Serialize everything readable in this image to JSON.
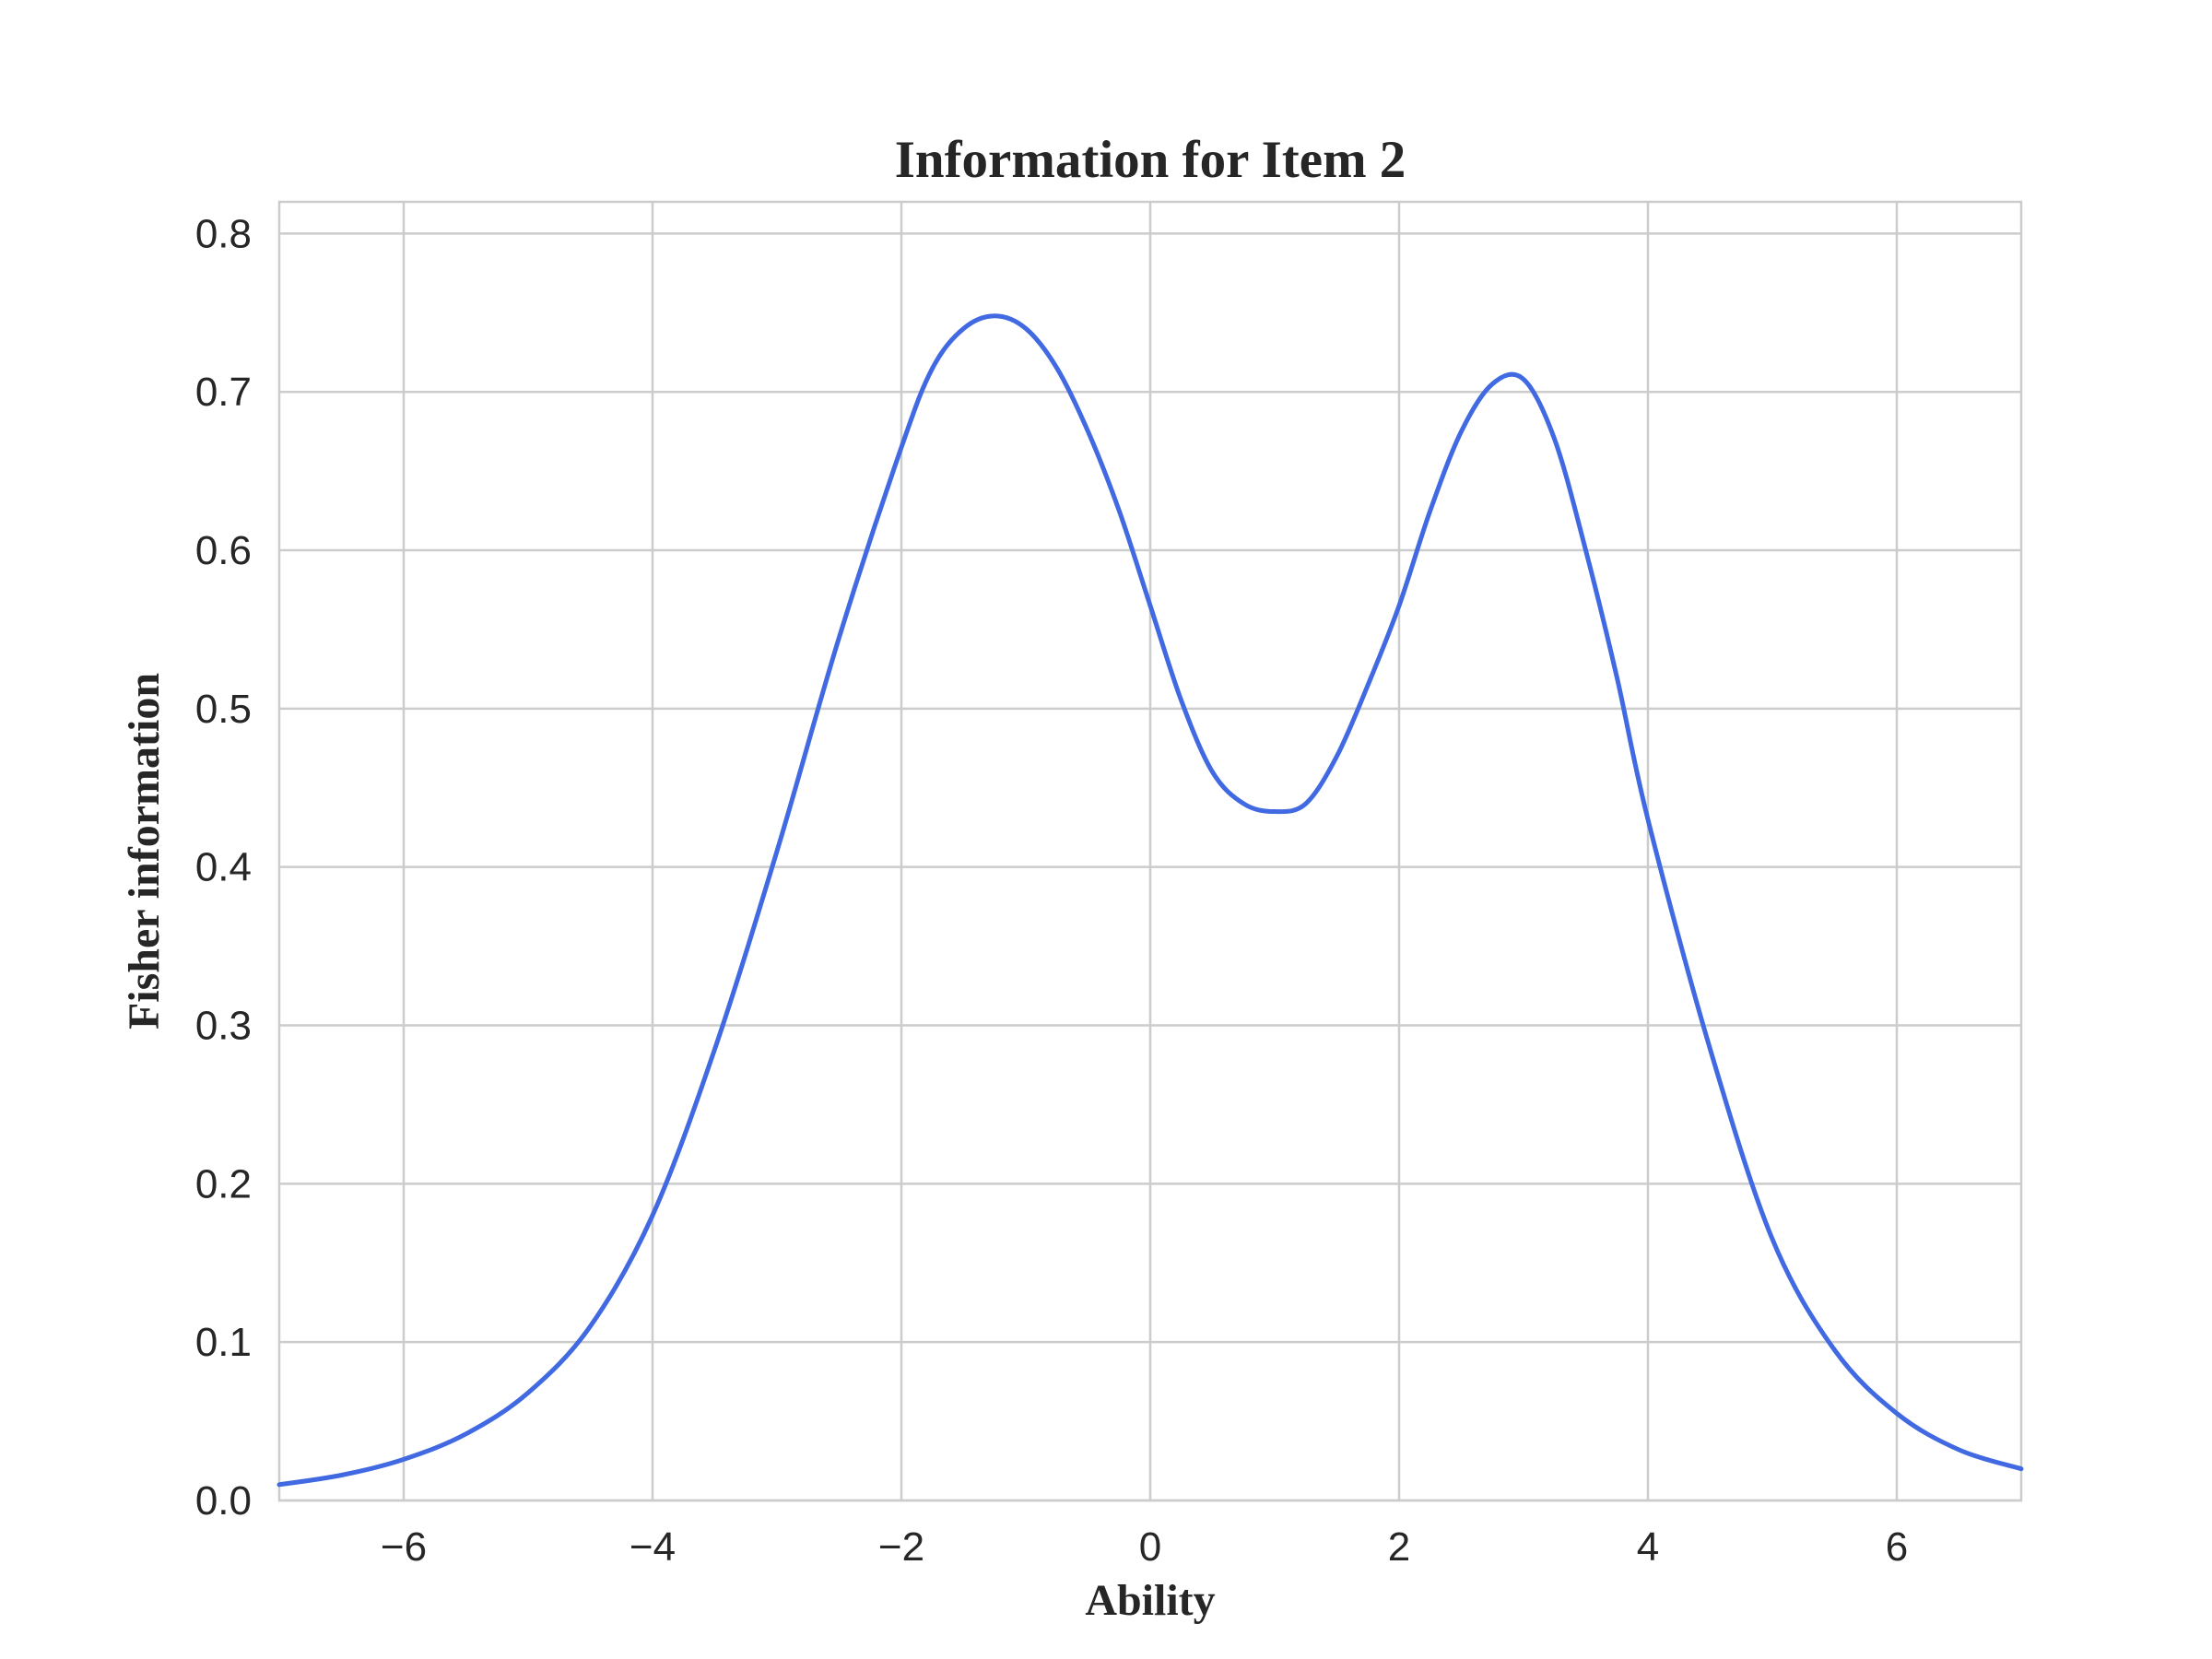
{
  "chart_data": {
    "type": "line",
    "title": "Information for Item 2",
    "xlabel": "Ability",
    "ylabel": "Fisher information",
    "xlim": [
      -7,
      7
    ],
    "ylim": [
      0,
      0.82
    ],
    "xticks": [
      -6,
      -4,
      -2,
      0,
      2,
      4,
      6
    ],
    "xtick_labels": [
      "−6",
      "−4",
      "−2",
      "0",
      "2",
      "4",
      "6"
    ],
    "yticks": [
      0.0,
      0.1,
      0.2,
      0.3,
      0.4,
      0.5,
      0.6,
      0.7,
      0.8
    ],
    "ytick_labels": [
      "0.0",
      "0.1",
      "0.2",
      "0.3",
      "0.4",
      "0.5",
      "0.6",
      "0.7",
      "0.8"
    ],
    "grid": true,
    "line_color": "#4169E1",
    "series": [
      {
        "x": [
          -7,
          -6.5,
          -6,
          -5.5,
          -5,
          -4.5,
          -4,
          -3.5,
          -3,
          -2.5,
          -2,
          -1.75,
          -1.5,
          -1.25,
          -1,
          -0.75,
          -0.5,
          -0.25,
          0,
          0.25,
          0.5,
          0.75,
          1,
          1.25,
          1.5,
          1.75,
          2,
          2.25,
          2.5,
          2.75,
          3,
          3.25,
          3.5,
          3.75,
          4,
          4.5,
          5,
          5.5,
          6,
          6.5,
          7
        ],
        "y": [
          0.01,
          0.016,
          0.026,
          0.042,
          0.068,
          0.11,
          0.18,
          0.285,
          0.41,
          0.545,
          0.665,
          0.715,
          0.74,
          0.748,
          0.74,
          0.715,
          0.675,
          0.625,
          0.565,
          0.505,
          0.46,
          0.44,
          0.435,
          0.44,
          0.47,
          0.515,
          0.565,
          0.625,
          0.675,
          0.705,
          0.708,
          0.67,
          0.6,
          0.52,
          0.43,
          0.285,
          0.165,
          0.095,
          0.055,
          0.032,
          0.02
        ]
      }
    ]
  }
}
